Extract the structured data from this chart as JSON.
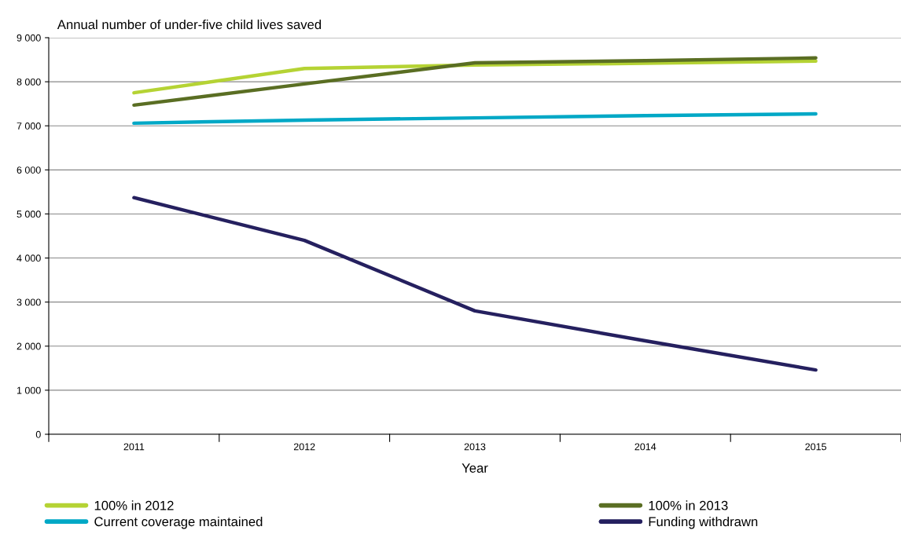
{
  "chart_data": {
    "type": "line",
    "ylabel": "Annual number of under-five child lives saved",
    "xlabel": "Year",
    "categories": [
      "2011",
      "2012",
      "2013",
      "2014",
      "2015"
    ],
    "series": [
      {
        "name": "100% in 2012",
        "color": "#b5d334",
        "values": [
          7750,
          8300,
          8380,
          8420,
          8470
        ]
      },
      {
        "name": "100% in 2013",
        "color": "#5a6e23",
        "values": [
          7470,
          7950,
          8430,
          8480,
          8540
        ]
      },
      {
        "name": "Current coverage maintained",
        "color": "#00a8c6",
        "values": [
          7060,
          7130,
          7180,
          7230,
          7270
        ]
      },
      {
        "name": "Funding withdrawn",
        "color": "#25205f",
        "values": [
          5370,
          4400,
          2800,
          2120,
          1460
        ]
      }
    ],
    "ylim": [
      0,
      9000
    ],
    "yticks": [
      0,
      {
        "value": 1000,
        "label": "1 000"
      },
      {
        "value": 2000,
        "label": "2 000"
      },
      {
        "value": 3000,
        "label": "3 000"
      },
      {
        "value": 4000,
        "label": "4 000"
      },
      {
        "value": 5000,
        "label": "5 000"
      },
      {
        "value": 6000,
        "label": "6 000"
      },
      {
        "value": 7000,
        "label": "7 000"
      },
      {
        "value": 8000,
        "label": "8 000"
      },
      {
        "value": 9000,
        "label": "9 000"
      }
    ],
    "grid": "y",
    "legend": "bottom",
    "marker": "none",
    "line_style": "solid"
  }
}
